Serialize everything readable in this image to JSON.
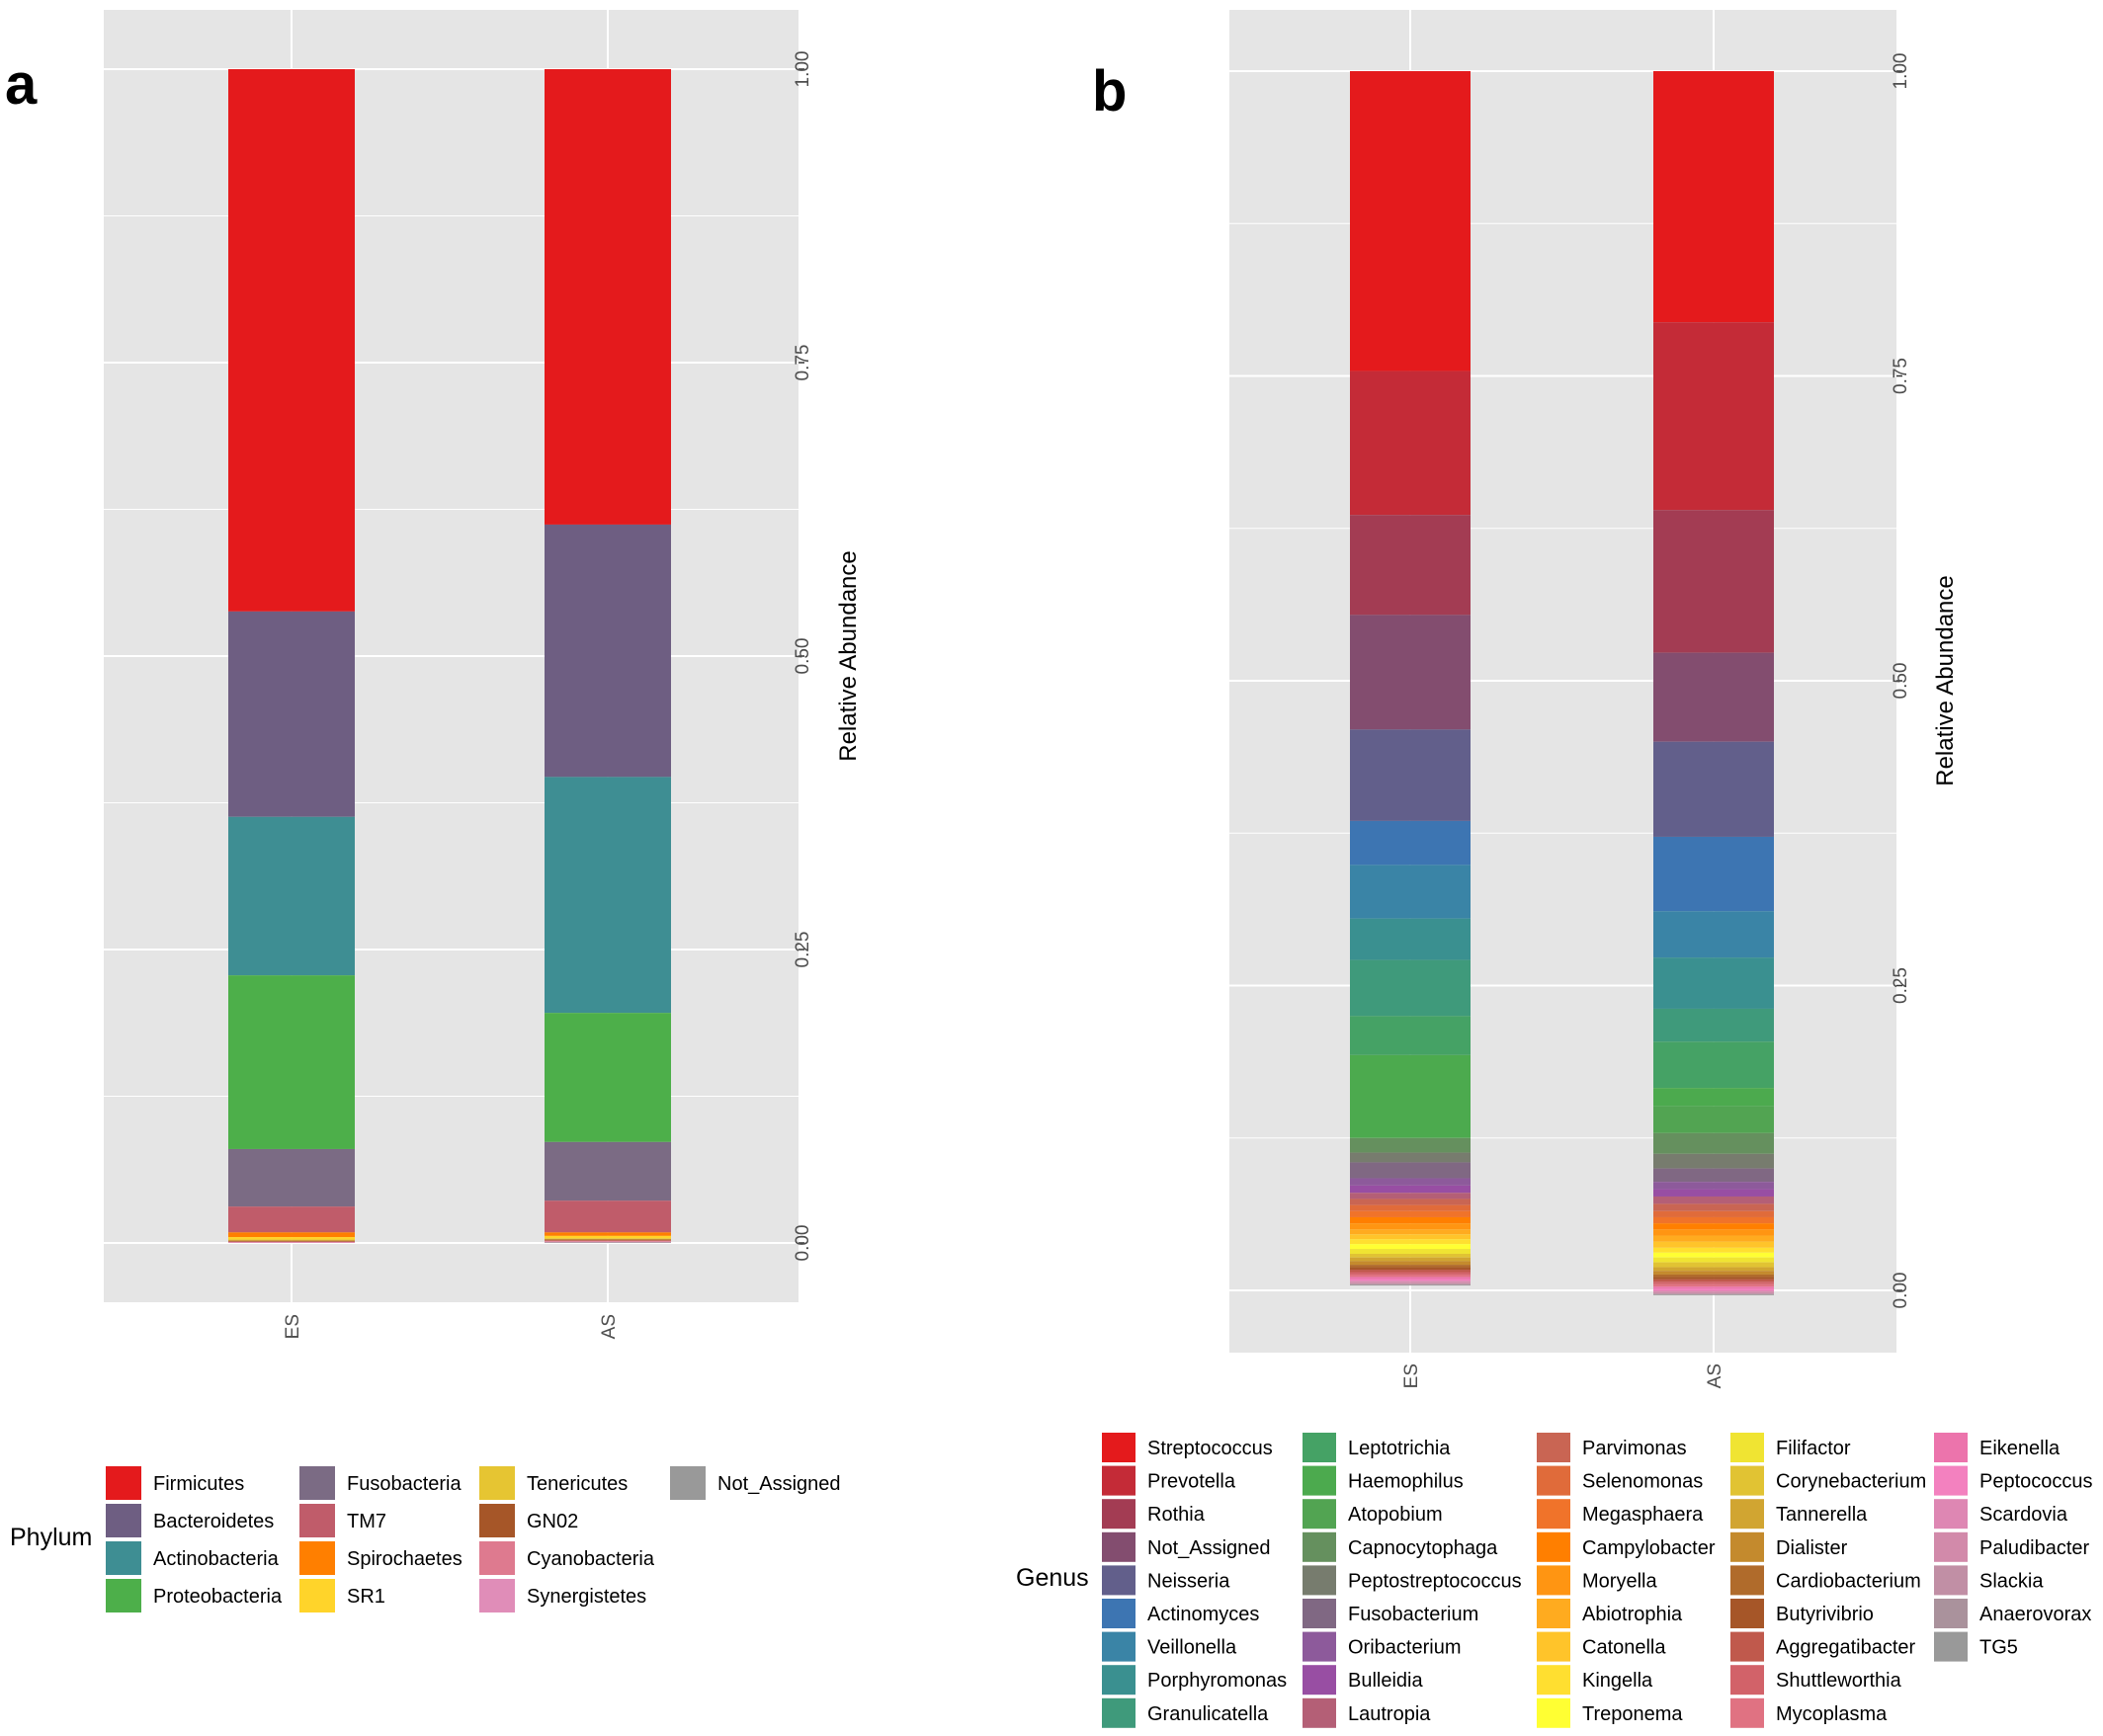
{
  "chart_data": [
    {
      "panel": "a",
      "type": "bar",
      "stacked": true,
      "categories": [
        "ES",
        "AS"
      ],
      "xlabel": "",
      "ylabel": "Relative Abundance",
      "ylim": [
        0,
        1
      ],
      "yticks": [
        "0.00",
        "0.25",
        "0.50",
        "0.75",
        "1.00"
      ],
      "grid": true,
      "legend_title": "Phylum",
      "legend_position": "bottom",
      "legend_entries": [
        {
          "name": "Firmicutes",
          "color": "#e41a1c"
        },
        {
          "name": "Bacteroidetes",
          "color": "#6e5e82"
        },
        {
          "name": "Actinobacteria",
          "color": "#3e8e93"
        },
        {
          "name": "Proteobacteria",
          "color": "#4daf4a"
        },
        {
          "name": "Fusobacteria",
          "color": "#7b6b84"
        },
        {
          "name": "TM7",
          "color": "#c05c6a"
        },
        {
          "name": "Spirochaetes",
          "color": "#ff7f00"
        },
        {
          "name": "SR1",
          "color": "#ffd42a"
        },
        {
          "name": "Tenericutes",
          "color": "#e6c532"
        },
        {
          "name": "GN02",
          "color": "#a65628"
        },
        {
          "name": "Cyanobacteria",
          "color": "#de7a8f"
        },
        {
          "name": "Synergistetes",
          "color": "#e08db8"
        },
        {
          "name": "Not_Assigned",
          "color": "#999999"
        }
      ],
      "series": [
        {
          "name": "Firmicutes",
          "values": [
            0.462,
            0.388
          ]
        },
        {
          "name": "Bacteroidetes",
          "values": [
            0.175,
            0.215
          ]
        },
        {
          "name": "Actinobacteria",
          "values": [
            0.135,
            0.201
          ]
        },
        {
          "name": "Proteobacteria",
          "values": [
            0.148,
            0.11
          ]
        },
        {
          "name": "Fusobacteria",
          "values": [
            0.049,
            0.05
          ]
        },
        {
          "name": "TM7",
          "values": [
            0.022,
            0.027
          ]
        },
        {
          "name": "Spirochaetes",
          "values": [
            0.004,
            0.003
          ]
        },
        {
          "name": "SR1",
          "values": [
            0.002,
            0.002
          ]
        },
        {
          "name": "Tenericutes",
          "values": [
            0.001,
            0.001
          ]
        },
        {
          "name": "GN02",
          "values": [
            0.001,
            0.001
          ]
        },
        {
          "name": "Cyanobacteria",
          "values": [
            0.0005,
            0.001
          ]
        },
        {
          "name": "Synergistetes",
          "values": [
            0.0005,
            0.0005
          ]
        },
        {
          "name": "Not_Assigned",
          "values": [
            0.0,
            0.0005
          ]
        }
      ]
    },
    {
      "panel": "b",
      "type": "bar",
      "stacked": true,
      "categories": [
        "ES",
        "AS"
      ],
      "xlabel": "",
      "ylabel": "Relative Abundance",
      "ylim": [
        0,
        1
      ],
      "yticks": [
        "0.00",
        "0.25",
        "0.50",
        "0.75",
        "1.00"
      ],
      "grid": true,
      "legend_title": "Genus",
      "legend_position": "bottom",
      "legend_entries": [
        {
          "name": "Streptococcus",
          "color": "#e41a1c"
        },
        {
          "name": "Prevotella",
          "color": "#c42b37"
        },
        {
          "name": "Rothia",
          "color": "#a33c53"
        },
        {
          "name": "Not_Assigned",
          "color": "#834d6f"
        },
        {
          "name": "Neisseria",
          "color": "#625f8b"
        },
        {
          "name": "Actinomyces",
          "color": "#3d75b2"
        },
        {
          "name": "Veillonella",
          "color": "#3a84a6"
        },
        {
          "name": "Porphyromonas",
          "color": "#3a9090"
        },
        {
          "name": "Granulicatella",
          "color": "#3f9a7b"
        },
        {
          "name": "Leptotrichia",
          "color": "#45a265"
        },
        {
          "name": "Haemophilus",
          "color": "#4caa4e"
        },
        {
          "name": "Atopobium",
          "color": "#52a452"
        },
        {
          "name": "Capnocytophaga",
          "color": "#65905e"
        },
        {
          "name": "Peptostreptococcus",
          "color": "#777c6e"
        },
        {
          "name": "Fusobacterium",
          "color": "#806883"
        },
        {
          "name": "Oribacterium",
          "color": "#8d5a9b"
        },
        {
          "name": "Bulleidia",
          "color": "#984ea3"
        },
        {
          "name": "Lautropia",
          "color": "#b45f76"
        },
        {
          "name": "Parvimonas",
          "color": "#c96553"
        },
        {
          "name": "Selenomonas",
          "color": "#e06b3a"
        },
        {
          "name": "Megasphaera",
          "color": "#f0732a"
        },
        {
          "name": "Campylobacter",
          "color": "#ff7f00"
        },
        {
          "name": "Moryella",
          "color": "#ff9512"
        },
        {
          "name": "Abiotrophia",
          "color": "#ffab1f"
        },
        {
          "name": "Catonella",
          "color": "#ffc42a"
        },
        {
          "name": "Kingella",
          "color": "#ffdf30"
        },
        {
          "name": "Treponema",
          "color": "#ffff33"
        },
        {
          "name": "Filifactor",
          "color": "#f0e432"
        },
        {
          "name": "Corynebacterium",
          "color": "#e1c333"
        },
        {
          "name": "Tannerella",
          "color": "#d1a531"
        },
        {
          "name": "Dialister",
          "color": "#c48a2d"
        },
        {
          "name": "Cardiobacterium",
          "color": "#b06b2b"
        },
        {
          "name": "Butyrivibrio",
          "color": "#a65628"
        },
        {
          "name": "Aggregatibacter",
          "color": "#c0594c"
        },
        {
          "name": "Shuttleworthia",
          "color": "#d26269"
        },
        {
          "name": "Mycoplasma",
          "color": "#e07282"
        },
        {
          "name": "Eikenella",
          "color": "#ec74ac"
        },
        {
          "name": "Peptococcus",
          "color": "#f381bf"
        },
        {
          "name": "Scardovia",
          "color": "#de87b3"
        },
        {
          "name": "Paludibacter",
          "color": "#d28aaa"
        },
        {
          "name": "Slackia",
          "color": "#c18fa5"
        },
        {
          "name": "Anaerovorax",
          "color": "#aa929c"
        },
        {
          "name": "TG5",
          "color": "#999999"
        }
      ],
      "series": [
        {
          "name": "Streptococcus",
          "values": [
            0.246,
            0.206
          ]
        },
        {
          "name": "Prevotella",
          "values": [
            0.118,
            0.154
          ]
        },
        {
          "name": "Rothia",
          "values": [
            0.082,
            0.117
          ]
        },
        {
          "name": "Not_Assigned",
          "values": [
            0.094,
            0.073
          ]
        },
        {
          "name": "Neisseria",
          "values": [
            0.075,
            0.078
          ]
        },
        {
          "name": "Actinomyces",
          "values": [
            0.036,
            0.061
          ]
        },
        {
          "name": "Veillonella",
          "values": [
            0.044,
            0.038
          ]
        },
        {
          "name": "Porphyromonas",
          "values": [
            0.034,
            0.042
          ]
        },
        {
          "name": "Granulicatella",
          "values": [
            0.046,
            0.027
          ]
        },
        {
          "name": "Leptotrichia",
          "values": [
            0.032,
            0.038
          ]
        },
        {
          "name": "Haemophilus",
          "values": [
            0.068,
            0.015
          ]
        },
        {
          "name": "Atopobium",
          "values": [
            0.0,
            0.022
          ]
        },
        {
          "name": "Capnocytophaga",
          "values": [
            0.012,
            0.017
          ]
        },
        {
          "name": "Peptostreptococcus",
          "values": [
            0.008,
            0.012
          ]
        },
        {
          "name": "Fusobacterium",
          "values": [
            0.013,
            0.011
          ]
        },
        {
          "name": "Oribacterium",
          "values": [
            0.006,
            0.006
          ]
        },
        {
          "name": "Bulleidia",
          "values": [
            0.006,
            0.006
          ]
        },
        {
          "name": "Lautropia",
          "values": [
            0.005,
            0.006
          ]
        },
        {
          "name": "Parvimonas",
          "values": [
            0.005,
            0.006
          ]
        },
        {
          "name": "Selenomonas",
          "values": [
            0.005,
            0.005
          ]
        },
        {
          "name": "Megasphaera",
          "values": [
            0.005,
            0.005
          ]
        },
        {
          "name": "Campylobacter",
          "values": [
            0.005,
            0.005
          ]
        },
        {
          "name": "Moryella",
          "values": [
            0.005,
            0.005
          ]
        },
        {
          "name": "Abiotrophia",
          "values": [
            0.004,
            0.005
          ]
        },
        {
          "name": "Catonella",
          "values": [
            0.004,
            0.005
          ]
        },
        {
          "name": "Kingella",
          "values": [
            0.004,
            0.004
          ]
        },
        {
          "name": "Treponema",
          "values": [
            0.004,
            0.004
          ]
        },
        {
          "name": "Filifactor",
          "values": [
            0.004,
            0.004
          ]
        },
        {
          "name": "Corynebacterium",
          "values": [
            0.003,
            0.004
          ]
        },
        {
          "name": "Tannerella",
          "values": [
            0.003,
            0.003
          ]
        },
        {
          "name": "Dialister",
          "values": [
            0.003,
            0.003
          ]
        },
        {
          "name": "Cardiobacterium",
          "values": [
            0.002,
            0.002
          ]
        },
        {
          "name": "Butyrivibrio",
          "values": [
            0.002,
            0.002
          ]
        },
        {
          "name": "Aggregatibacter",
          "values": [
            0.002,
            0.002
          ]
        },
        {
          "name": "Shuttleworthia",
          "values": [
            0.002,
            0.002
          ]
        },
        {
          "name": "Mycoplasma",
          "values": [
            0.002,
            0.002
          ]
        },
        {
          "name": "Eikenella",
          "values": [
            0.002,
            0.002
          ]
        },
        {
          "name": "Peptococcus",
          "values": [
            0.001,
            0.001
          ]
        },
        {
          "name": "Scardovia",
          "values": [
            0.001,
            0.001
          ]
        },
        {
          "name": "Paludibacter",
          "values": [
            0.001,
            0.001
          ]
        },
        {
          "name": "Slackia",
          "values": [
            0.001,
            0.001
          ]
        },
        {
          "name": "Anaerovorax",
          "values": [
            0.0005,
            0.0005
          ]
        },
        {
          "name": "TG5",
          "values": [
            0.0005,
            0.0005
          ]
        }
      ]
    }
  ]
}
